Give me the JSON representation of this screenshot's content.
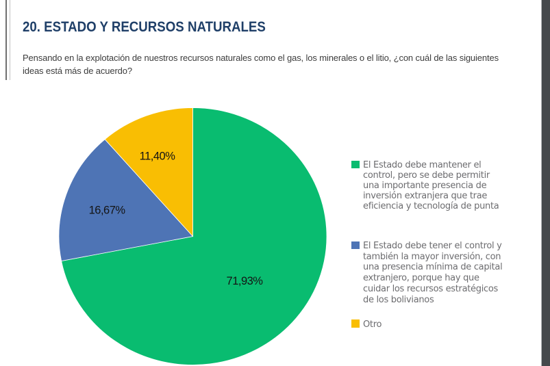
{
  "page": {
    "title": "20. ESTADO Y RECURSOS NATURALES",
    "question_lines": [
      "Pensando en la explotación de nuestros recursos naturales como el gas, los minerales o el litio, ¿con cuál de las siguientes",
      "ideas está más de acuerdo?"
    ]
  },
  "colors": {
    "title_text": "#1F3F68",
    "question_text": "#3C3C3C",
    "legend_text": "#6C6C6F",
    "slice_label_text": "#141414",
    "right_strip": "#45494C",
    "page_background": "#FFFFFF"
  },
  "chart_data": {
    "type": "pie",
    "title": "",
    "legend_position": "right",
    "direction": "clockwise",
    "start_angle_deg": 0,
    "slices": [
      {
        "label": "El Estado debe mantener el control, pero se debe permitir una importante presencia de inversión extranjera que trae eficiencia y tecnología de punta",
        "legend_lines": [
          "El Estado debe mantener el",
          "control, pero se debe permitir",
          "una importante presencia de",
          "inversión extranjera que trae",
          "eficiencia y tecnología de punta"
        ],
        "value": 71.93,
        "display": "71,93%",
        "color": "#09BC70",
        "label_radius": 0.53
      },
      {
        "label": "El Estado debe tener el control y también la mayor inversión, con una presencia mínima de capital extranjero, porque hay que cuidar los recursos estratégicos de los bolivianos",
        "legend_lines": [
          "El Estado debe tener el control y",
          "también la mayor inversión, con",
          "una presencia mínima de capital",
          "extranjero, porque hay que",
          "cuidar los recursos estratégicos",
          "de los bolivianos"
        ],
        "value": 16.67,
        "display": "16,67%",
        "color": "#4E74B5",
        "label_radius": 0.67
      },
      {
        "label": "Otro",
        "legend_lines": [
          "Otro"
        ],
        "value": 11.4,
        "display": "11,40%",
        "color": "#F9BE03",
        "label_radius": 0.7
      }
    ]
  }
}
